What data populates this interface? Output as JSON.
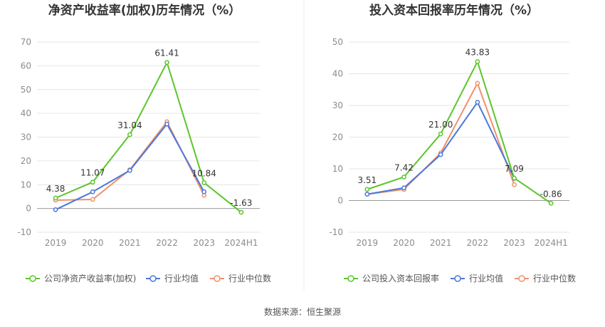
{
  "source_label": "数据来源：恒生聚源",
  "chart_data": [
    {
      "type": "line",
      "title": "净资产收益率(加权)历年情况（%）",
      "categories": [
        "2019",
        "2020",
        "2021",
        "2022",
        "2023",
        "2024H1"
      ],
      "ylim": [
        -10,
        70
      ],
      "yticks": [
        -10,
        0,
        10,
        20,
        30,
        40,
        50,
        60,
        70
      ],
      "grid": true,
      "legend_position": "bottom",
      "series": [
        {
          "name": "公司净资产收益率(加权)",
          "color": "#5cc52b",
          "values": [
            4.38,
            11.07,
            31.04,
            61.41,
            10.84,
            -1.63
          ],
          "labels": [
            "4.38",
            "11.07",
            "31.04",
            "61.41",
            "10.84",
            "-1.63"
          ]
        },
        {
          "name": "行业均值",
          "color": "#4a78db",
          "values": [
            -0.5,
            7.0,
            16.0,
            35.5,
            7.0,
            null
          ]
        },
        {
          "name": "行业中位数",
          "color": "#f0916c",
          "values": [
            3.5,
            3.8,
            16.3,
            36.5,
            5.5,
            null
          ]
        }
      ]
    },
    {
      "type": "line",
      "title": "投入资本回报率历年情况（%）",
      "categories": [
        "2019",
        "2020",
        "2021",
        "2022",
        "2023",
        "2024H1"
      ],
      "ylim": [
        -10,
        50
      ],
      "yticks": [
        -10,
        0,
        10,
        20,
        30,
        40,
        50
      ],
      "grid": true,
      "legend_position": "bottom",
      "series": [
        {
          "name": "公司投入资本回报率",
          "color": "#5cc52b",
          "values": [
            3.51,
            7.42,
            21.0,
            43.83,
            7.09,
            -0.86
          ],
          "labels": [
            "3.51",
            "7.42",
            "21.00",
            "43.83",
            "7.09",
            "-0.86"
          ]
        },
        {
          "name": "行业均值",
          "color": "#4a78db",
          "values": [
            2.0,
            4.0,
            14.5,
            31.0,
            7.0,
            null
          ]
        },
        {
          "name": "行业中位数",
          "color": "#f0916c",
          "values": [
            2.0,
            3.5,
            15.0,
            37.0,
            5.0,
            null
          ]
        }
      ]
    }
  ]
}
